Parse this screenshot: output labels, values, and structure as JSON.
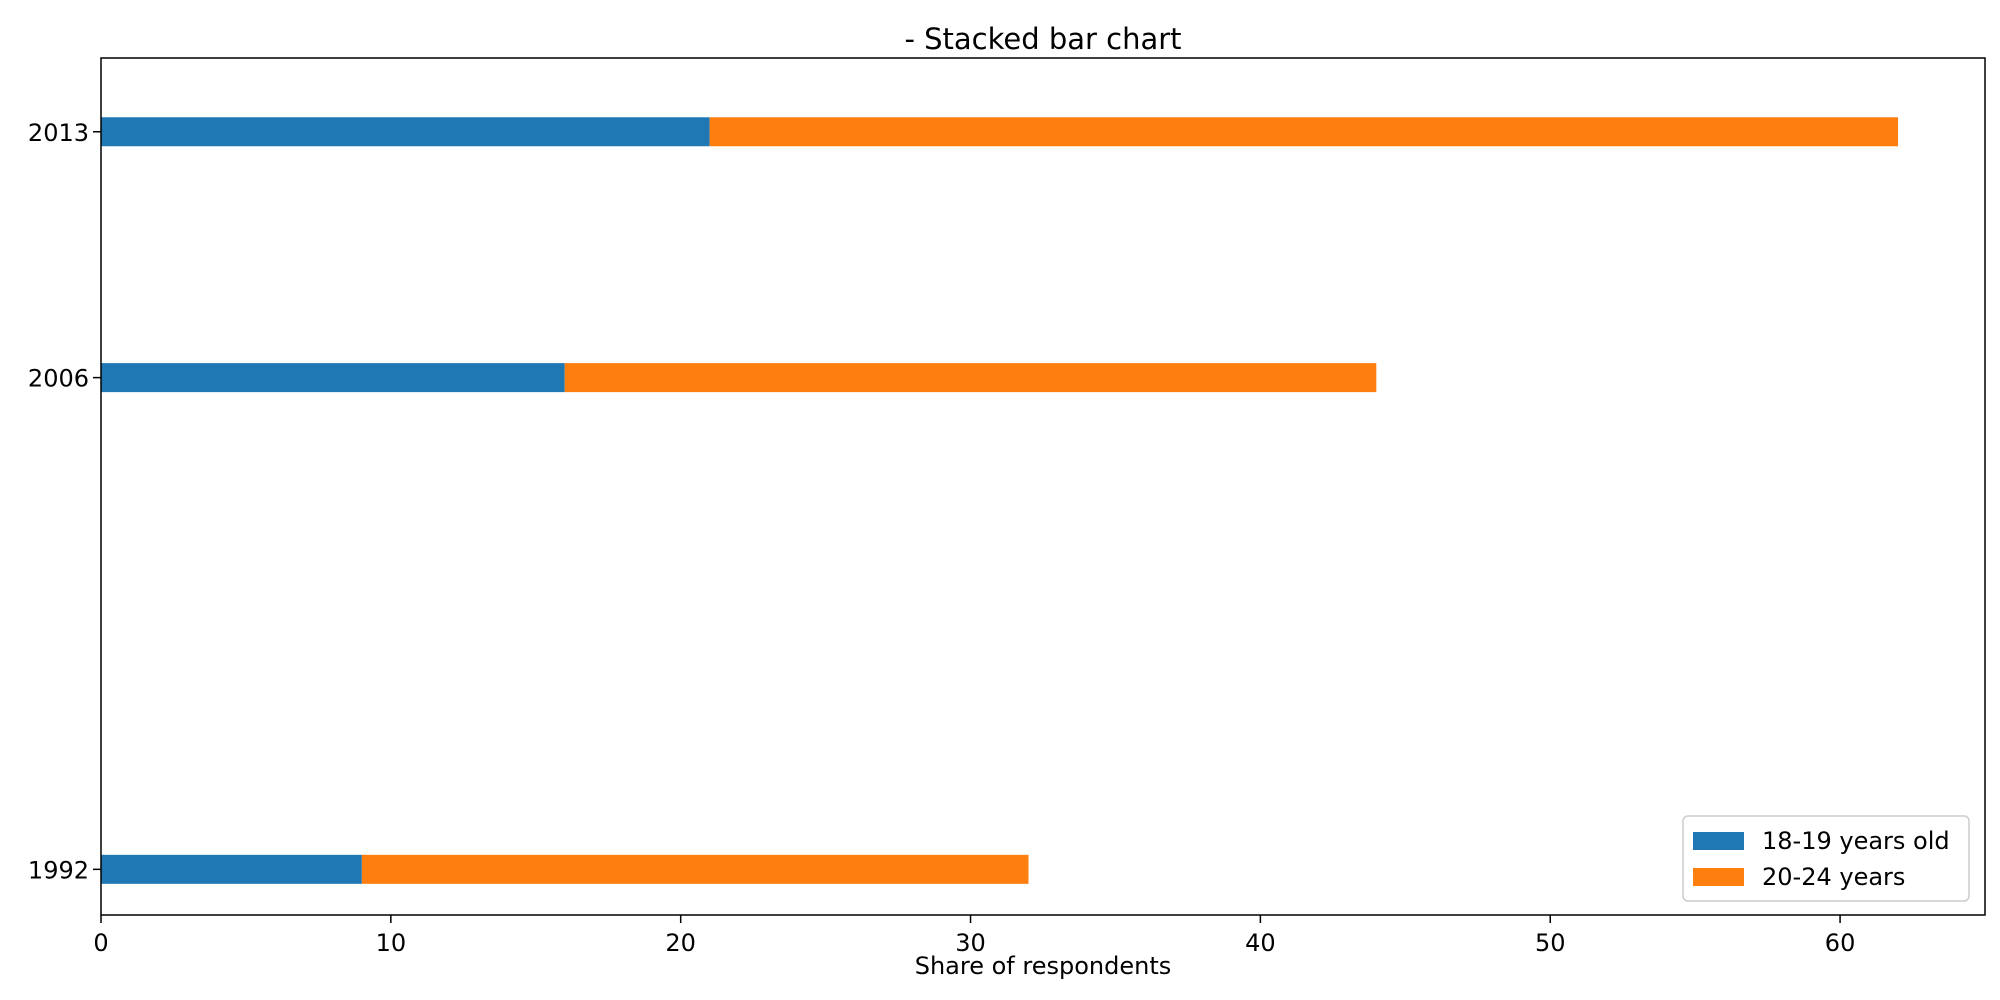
{
  "chart_data": {
    "type": "bar",
    "orientation": "horizontal",
    "stacked": true,
    "title": "- Stacked bar chart",
    "xlabel": "Share of respondents",
    "ylabel": "",
    "xlim": [
      0,
      65
    ],
    "x_ticks": [
      0,
      10,
      20,
      30,
      40,
      50,
      60
    ],
    "categories": [
      "1992",
      "2006",
      "2013"
    ],
    "y_values": [
      1992,
      2006,
      2013
    ],
    "ylim": [
      1990.7,
      2015.1
    ],
    "grid": false,
    "legend": {
      "placement": "lower-right"
    },
    "series": [
      {
        "name": "18-19 years old",
        "color": "#1f77b4",
        "values": [
          9,
          16,
          21
        ]
      },
      {
        "name": "20-24 years",
        "color": "#ff7f0e",
        "values": [
          23,
          28,
          41
        ]
      }
    ]
  }
}
